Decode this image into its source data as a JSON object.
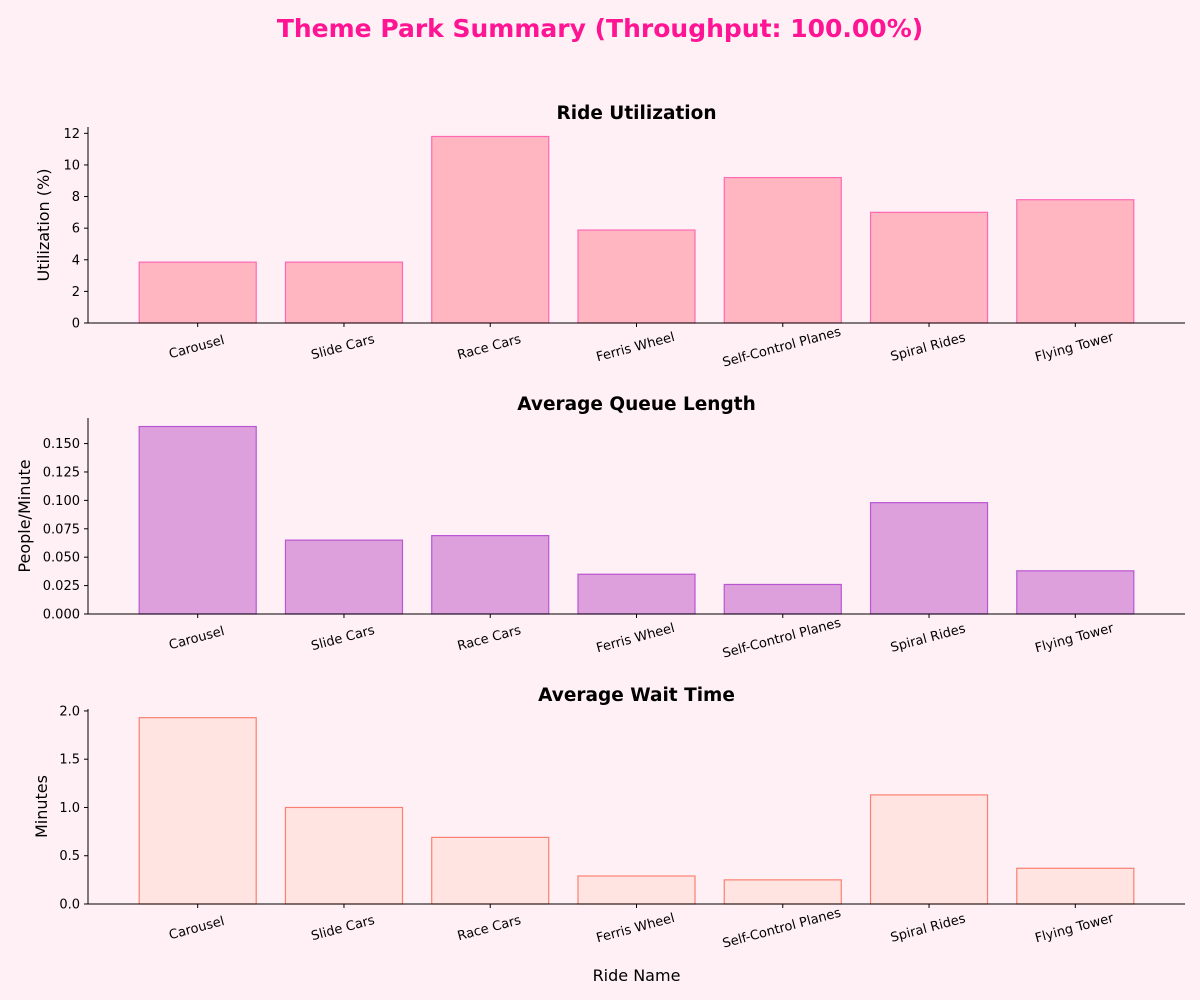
{
  "title": "Theme Park Summary (Throughput: 100.00%)",
  "colors": {
    "background": "#fff0f5",
    "title": "#ff1493"
  },
  "chart_data": [
    {
      "type": "bar",
      "title": "Ride Utilization",
      "xlabel": "",
      "ylabel": "Utilization (%)",
      "categories": [
        "Carousel",
        "Slide Cars",
        "Race Cars",
        "Ferris Wheel",
        "Self-Control Planes",
        "Spiral Rides",
        "Flying Tower"
      ],
      "values": [
        3.85,
        3.85,
        11.8,
        5.88,
        9.2,
        7.0,
        7.8
      ],
      "ylim": [
        0,
        12.4
      ],
      "yticks": [
        0,
        2,
        4,
        6,
        8,
        10,
        12
      ],
      "ytick_labels": [
        "0",
        "2",
        "4",
        "6",
        "8",
        "10",
        "12"
      ],
      "fill": "#ffb6c1",
      "edge": "#ff69b4",
      "grid": false
    },
    {
      "type": "bar",
      "title": "Average Queue Length",
      "xlabel": "",
      "ylabel": "People/Minute",
      "categories": [
        "Carousel",
        "Slide Cars",
        "Race Cars",
        "Ferris Wheel",
        "Self-Control Planes",
        "Spiral Rides",
        "Flying Tower"
      ],
      "values": [
        0.165,
        0.065,
        0.069,
        0.035,
        0.026,
        0.098,
        0.038
      ],
      "ylim": [
        0,
        0.1725
      ],
      "yticks": [
        0,
        0.025,
        0.05,
        0.075,
        0.1,
        0.125,
        0.15
      ],
      "ytick_labels": [
        "0.000",
        "0.025",
        "0.050",
        "0.075",
        "0.100",
        "0.125",
        "0.150"
      ],
      "fill": "#dda0dd",
      "edge": "#ba55d3",
      "grid": false
    },
    {
      "type": "bar",
      "title": "Average Wait Time",
      "xlabel": "Ride Name",
      "ylabel": "Minutes",
      "categories": [
        "Carousel",
        "Slide Cars",
        "Race Cars",
        "Ferris Wheel",
        "Self-Control Planes",
        "Spiral Rides",
        "Flying Tower"
      ],
      "values": [
        1.93,
        1.0,
        0.69,
        0.29,
        0.25,
        1.13,
        0.37
      ],
      "ylim": [
        0,
        2.02
      ],
      "yticks": [
        0,
        0.5,
        1.0,
        1.5,
        2.0
      ],
      "ytick_labels": [
        "0.0",
        "0.5",
        "1.0",
        "1.5",
        "2.0"
      ],
      "fill": "#ffe4e1",
      "edge": "#fa8072",
      "grid": false
    }
  ]
}
